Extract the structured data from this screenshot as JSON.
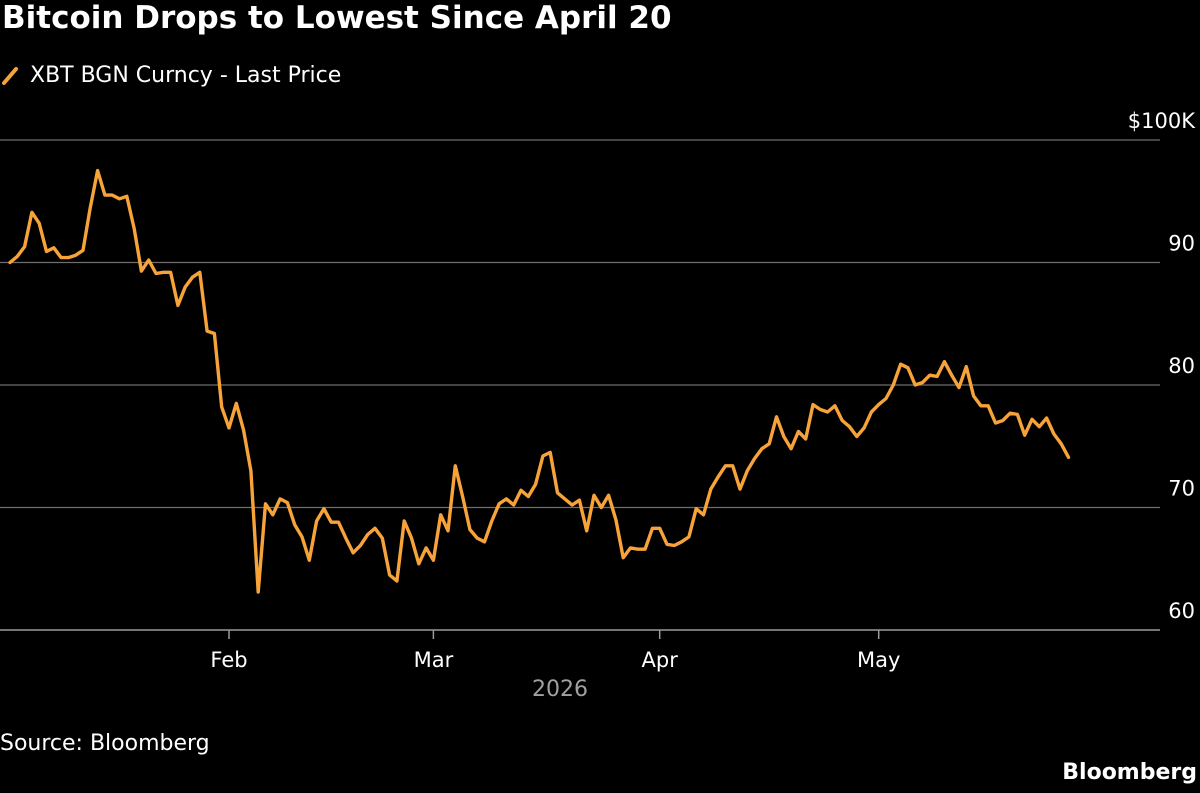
{
  "title": "Bitcoin Drops to Lowest Since April 20",
  "source": "Source: Bloomberg",
  "brand": "Bloomberg",
  "colors": {
    "background": "#000000",
    "line": "#f7a33a",
    "grid": "#6e6e6e",
    "text": "#ffffff",
    "muted_text": "#a0a0a0"
  },
  "chart_data": {
    "type": "line",
    "title": "Bitcoin Drops to Lowest Since April 20",
    "xlabel": "2026",
    "ylabel": "",
    "ylim": [
      60,
      100
    ],
    "grid": true,
    "legend_position": "top-left",
    "y_ticks": [
      {
        "value": 100,
        "label": "$100K"
      },
      {
        "value": 90,
        "label": "90"
      },
      {
        "value": 80,
        "label": "80"
      },
      {
        "value": 70,
        "label": "70"
      },
      {
        "value": 60,
        "label": "60"
      }
    ],
    "x_ticks": [
      {
        "date": "2026-02-01",
        "label": "Feb"
      },
      {
        "date": "2026-03-01",
        "label": "Mar"
      },
      {
        "date": "2026-04-01",
        "label": "Apr"
      },
      {
        "date": "2026-05-01",
        "label": "May"
      }
    ],
    "series": [
      {
        "name": "XBT BGN Curncy - Last Price",
        "color": "#f7a33a",
        "points": [
          [
            "2026-01-02",
            90.0
          ],
          [
            "2026-01-03",
            90.5
          ],
          [
            "2026-01-04",
            91.3
          ],
          [
            "2026-01-05",
            94.1
          ],
          [
            "2026-01-06",
            93.2
          ],
          [
            "2026-01-07",
            90.9
          ],
          [
            "2026-01-08",
            91.2
          ],
          [
            "2026-01-09",
            90.4
          ],
          [
            "2026-01-10",
            90.4
          ],
          [
            "2026-01-11",
            90.6
          ],
          [
            "2026-01-12",
            91.0
          ],
          [
            "2026-01-13",
            94.5
          ],
          [
            "2026-01-14",
            97.5
          ],
          [
            "2026-01-15",
            95.5
          ],
          [
            "2026-01-16",
            95.5
          ],
          [
            "2026-01-17",
            95.2
          ],
          [
            "2026-01-18",
            95.4
          ],
          [
            "2026-01-19",
            92.8
          ],
          [
            "2026-01-20",
            89.3
          ],
          [
            "2026-01-21",
            90.2
          ],
          [
            "2026-01-22",
            89.1
          ],
          [
            "2026-01-23",
            89.2
          ],
          [
            "2026-01-24",
            89.2
          ],
          [
            "2026-01-25",
            86.5
          ],
          [
            "2026-01-26",
            88.0
          ],
          [
            "2026-01-27",
            88.8
          ],
          [
            "2026-01-28",
            89.2
          ],
          [
            "2026-01-29",
            84.4
          ],
          [
            "2026-01-30",
            84.2
          ],
          [
            "2026-01-31",
            78.2
          ],
          [
            "2026-02-01",
            76.5
          ],
          [
            "2026-02-02",
            78.5
          ],
          [
            "2026-02-03",
            76.3
          ],
          [
            "2026-02-04",
            73.0
          ],
          [
            "2026-02-05",
            63.1
          ],
          [
            "2026-02-06",
            70.3
          ],
          [
            "2026-02-07",
            69.4
          ],
          [
            "2026-02-08",
            70.7
          ],
          [
            "2026-02-09",
            70.4
          ],
          [
            "2026-02-10",
            68.6
          ],
          [
            "2026-02-11",
            67.6
          ],
          [
            "2026-02-12",
            65.7
          ],
          [
            "2026-02-13",
            68.9
          ],
          [
            "2026-02-14",
            69.9
          ],
          [
            "2026-02-15",
            68.8
          ],
          [
            "2026-02-16",
            68.8
          ],
          [
            "2026-02-17",
            67.5
          ],
          [
            "2026-02-18",
            66.3
          ],
          [
            "2026-02-19",
            66.9
          ],
          [
            "2026-02-20",
            67.8
          ],
          [
            "2026-02-21",
            68.3
          ],
          [
            "2026-02-22",
            67.5
          ],
          [
            "2026-02-23",
            64.5
          ],
          [
            "2026-02-24",
            64.0
          ],
          [
            "2026-02-25",
            68.9
          ],
          [
            "2026-02-26",
            67.5
          ],
          [
            "2026-02-27",
            65.4
          ],
          [
            "2026-02-28",
            66.7
          ],
          [
            "2026-03-01",
            65.7
          ],
          [
            "2026-03-02",
            69.4
          ],
          [
            "2026-03-03",
            68.1
          ],
          [
            "2026-03-04",
            73.4
          ],
          [
            "2026-03-05",
            70.9
          ],
          [
            "2026-03-06",
            68.2
          ],
          [
            "2026-03-07",
            67.5
          ],
          [
            "2026-03-08",
            67.2
          ],
          [
            "2026-03-09",
            68.9
          ],
          [
            "2026-03-10",
            70.3
          ],
          [
            "2026-03-11",
            70.7
          ],
          [
            "2026-03-12",
            70.2
          ],
          [
            "2026-03-13",
            71.4
          ],
          [
            "2026-03-14",
            70.9
          ],
          [
            "2026-03-15",
            71.9
          ],
          [
            "2026-03-16",
            74.2
          ],
          [
            "2026-03-17",
            74.5
          ],
          [
            "2026-03-18",
            71.2
          ],
          [
            "2026-03-19",
            70.7
          ],
          [
            "2026-03-20",
            70.2
          ],
          [
            "2026-03-21",
            70.6
          ],
          [
            "2026-03-22",
            68.1
          ],
          [
            "2026-03-23",
            71.0
          ],
          [
            "2026-03-24",
            70.0
          ],
          [
            "2026-03-25",
            71.0
          ],
          [
            "2026-03-26",
            69.0
          ],
          [
            "2026-03-27",
            65.9
          ],
          [
            "2026-03-28",
            66.7
          ],
          [
            "2026-03-29",
            66.6
          ],
          [
            "2026-03-30",
            66.6
          ],
          [
            "2026-03-31",
            68.3
          ],
          [
            "2026-04-01",
            68.3
          ],
          [
            "2026-04-02",
            67.0
          ],
          [
            "2026-04-03",
            66.9
          ],
          [
            "2026-04-04",
            67.2
          ],
          [
            "2026-04-05",
            67.6
          ],
          [
            "2026-04-06",
            69.9
          ],
          [
            "2026-04-07",
            69.4
          ],
          [
            "2026-04-08",
            71.5
          ],
          [
            "2026-04-09",
            72.5
          ],
          [
            "2026-04-10",
            73.4
          ],
          [
            "2026-04-11",
            73.4
          ],
          [
            "2026-04-12",
            71.5
          ],
          [
            "2026-04-13",
            73.0
          ],
          [
            "2026-04-14",
            74.0
          ],
          [
            "2026-04-15",
            74.8
          ],
          [
            "2026-04-16",
            75.2
          ],
          [
            "2026-04-17",
            77.4
          ],
          [
            "2026-04-18",
            75.8
          ],
          [
            "2026-04-19",
            74.8
          ],
          [
            "2026-04-20",
            76.2
          ],
          [
            "2026-04-21",
            75.6
          ],
          [
            "2026-04-22",
            78.4
          ],
          [
            "2026-04-23",
            78.0
          ],
          [
            "2026-04-24",
            77.8
          ],
          [
            "2026-04-25",
            78.3
          ],
          [
            "2026-04-26",
            77.1
          ],
          [
            "2026-04-27",
            76.6
          ],
          [
            "2026-04-28",
            75.8
          ],
          [
            "2026-04-29",
            76.5
          ],
          [
            "2026-04-30",
            77.8
          ],
          [
            "2026-05-01",
            78.4
          ],
          [
            "2026-05-02",
            78.9
          ],
          [
            "2026-05-03",
            80.0
          ],
          [
            "2026-05-04",
            81.7
          ],
          [
            "2026-05-05",
            81.4
          ],
          [
            "2026-05-06",
            80.0
          ],
          [
            "2026-05-07",
            80.2
          ],
          [
            "2026-05-08",
            80.8
          ],
          [
            "2026-05-09",
            80.7
          ],
          [
            "2026-05-10",
            81.9
          ],
          [
            "2026-05-11",
            80.8
          ],
          [
            "2026-05-12",
            79.8
          ],
          [
            "2026-05-13",
            81.5
          ],
          [
            "2026-05-14",
            79.1
          ],
          [
            "2026-05-15",
            78.3
          ],
          [
            "2026-05-16",
            78.3
          ],
          [
            "2026-05-17",
            76.9
          ],
          [
            "2026-05-18",
            77.1
          ],
          [
            "2026-05-19",
            77.7
          ],
          [
            "2026-05-20",
            77.6
          ],
          [
            "2026-05-21",
            75.9
          ],
          [
            "2026-05-22",
            77.2
          ],
          [
            "2026-05-23",
            76.6
          ],
          [
            "2026-05-24",
            77.3
          ],
          [
            "2026-05-25",
            76.0
          ],
          [
            "2026-05-26",
            75.2
          ],
          [
            "2026-05-27",
            74.1
          ]
        ]
      }
    ]
  }
}
